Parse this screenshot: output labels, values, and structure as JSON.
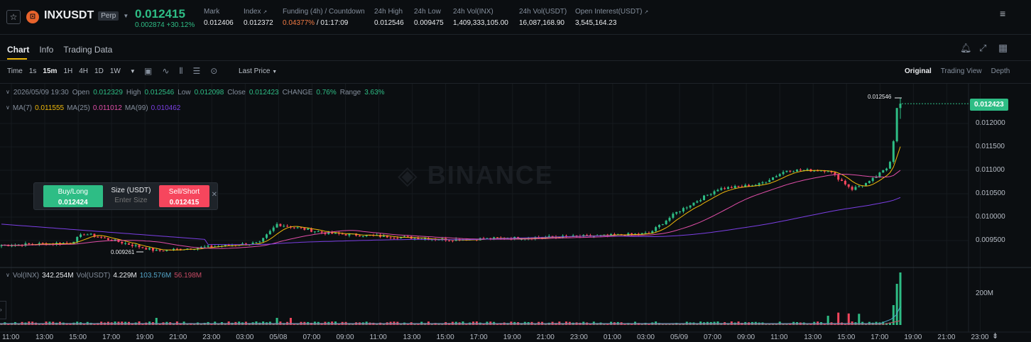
{
  "header": {
    "symbol": "INXUSDT",
    "badge": "Perp",
    "last_price": "0.012415",
    "change": "0.002874 +30.12%",
    "stats": [
      {
        "label": "Mark",
        "value": "0.012406"
      },
      {
        "label": "Index",
        "value": "0.012372"
      },
      {
        "label": "Funding (4h) / Countdown",
        "value_funding": "0.04377%",
        "value_countdown": "/ 01:17:09"
      },
      {
        "label": "24h High",
        "value": "0.012546"
      },
      {
        "label": "24h Low",
        "value": "0.009475"
      },
      {
        "label": "24h Vol(INX)",
        "value": "1,409,333,105.00"
      },
      {
        "label": "24h Vol(USDT)",
        "value": "16,087,168.90"
      },
      {
        "label": "Open Interest(USDT)",
        "value": "3,545,164.23"
      }
    ]
  },
  "tabs": [
    "Chart",
    "Info",
    "Trading Data"
  ],
  "toolbar": {
    "time_label": "Time",
    "intervals": [
      "1s",
      "15m",
      "1H",
      "4H",
      "1D",
      "1W"
    ],
    "active_interval": "15m",
    "price_type": "Last Price",
    "views": [
      "Original",
      "Trading View",
      "Depth"
    ],
    "active_view": "Original"
  },
  "legend": {
    "date": "2026/05/09 19:30",
    "open_label": "Open",
    "open": "0.012329",
    "high_label": "High",
    "high": "0.012546",
    "low_label": "Low",
    "low": "0.012098",
    "close_label": "Close",
    "close": "0.012423",
    "change_label": "CHANGE",
    "change": "0.76%",
    "range_label": "Range",
    "range": "3.63%",
    "ma7_label": "MA(7)",
    "ma7": "0.011555",
    "ma25_label": "MA(25)",
    "ma25": "0.011012",
    "ma99_label": "MA(99)",
    "ma99": "0.010462",
    "vol_label": "Vol(INX)",
    "vol": "342.254M",
    "volusdt_label": "Vol(USDT)",
    "volusdt": "4.229M",
    "volusdt_ma1": "103.576M",
    "volusdt_ma2": "56.198M"
  },
  "trade_panel": {
    "buy_label": "Buy/Long",
    "buy_price": "0.012424",
    "size_label": "Size (USDT)",
    "size_placeholder": "Enter Size",
    "sell_label": "Sell/Short",
    "sell_price": "0.012415"
  },
  "watermark": "BINANCE",
  "price_axis": [
    "0.012000",
    "0.011500",
    "0.011000",
    "0.010500",
    "0.010000",
    "0.009500"
  ],
  "current_price_tag": "0.012423",
  "high_marker": "0.012546",
  "low_marker": "0.009261",
  "volume_axis": [
    "200M"
  ],
  "time_axis": [
    "11:00",
    "13:00",
    "15:00",
    "17:00",
    "19:00",
    "21:00",
    "23:00",
    "03:00",
    "05/08",
    "07:00",
    "09:00",
    "11:00",
    "13:00",
    "15:00",
    "17:00",
    "19:00",
    "21:00",
    "23:00",
    "01:00",
    "03:00",
    "05/09",
    "07:00",
    "09:00",
    "11:00",
    "13:00",
    "15:00",
    "17:00",
    "19:00",
    "21:00",
    "23:00"
  ],
  "colors": {
    "up": "#2ebd85",
    "down": "#f6465d",
    "ma7": "#f0b90b",
    "ma25": "#e04ea8",
    "ma99": "#7b3fe4"
  },
  "chart_data": {
    "type": "candlestick",
    "key_points": [
      {
        "t": "11:00",
        "price": 0.0094
      },
      {
        "t": "15:00",
        "price": 0.00945
      },
      {
        "t": "15:30",
        "price": 0.00965
      },
      {
        "t": "19:30",
        "price": 0.00928
      },
      {
        "t": "03:00",
        "price": 0.00945
      },
      {
        "t": "04:00",
        "price": 0.00985
      },
      {
        "t": "07:00",
        "price": 0.00965
      },
      {
        "t": "13:00",
        "price": 0.00952
      },
      {
        "t": "23:00",
        "price": 0.0096
      },
      {
        "t": "01:00",
        "price": 0.00965
      },
      {
        "t": "03:00",
        "price": 0.0101
      },
      {
        "t": "05/09",
        "price": 0.0106
      },
      {
        "t": "07:00",
        "price": 0.0107
      },
      {
        "t": "08:30",
        "price": 0.011
      },
      {
        "t": "11:00",
        "price": 0.011
      },
      {
        "t": "14:00",
        "price": 0.0106
      },
      {
        "t": "17:00",
        "price": 0.01075
      },
      {
        "t": "18:30",
        "price": 0.0111
      },
      {
        "t": "19:30",
        "price": 0.01242
      }
    ]
  }
}
